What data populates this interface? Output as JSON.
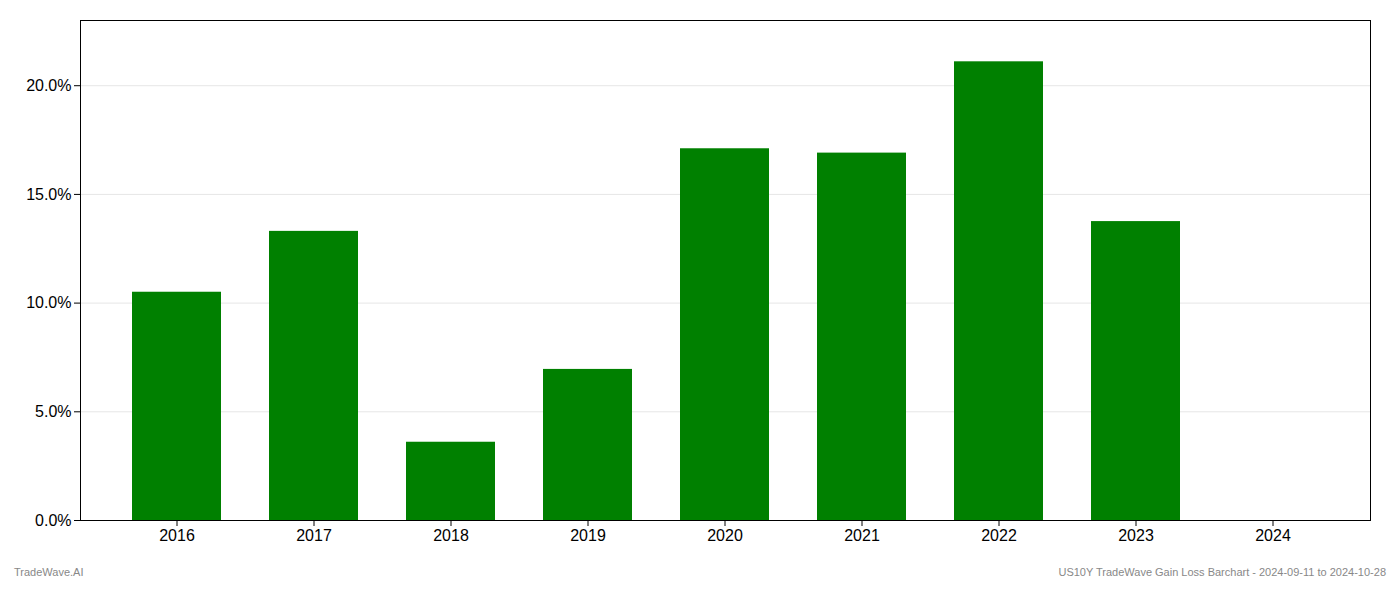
{
  "chart_data": {
    "type": "bar",
    "categories": [
      "2016",
      "2017",
      "2018",
      "2019",
      "2020",
      "2021",
      "2022",
      "2023",
      "2024"
    ],
    "values": [
      10.5,
      13.3,
      3.6,
      6.95,
      17.1,
      16.9,
      21.1,
      13.75,
      0.0
    ],
    "color": "#008000",
    "ylim": [
      0,
      23
    ],
    "yticks": [
      {
        "value": 0.0,
        "label": "0.0%"
      },
      {
        "value": 5.0,
        "label": "5.0%"
      },
      {
        "value": 10.0,
        "label": "10.0%"
      },
      {
        "value": 15.0,
        "label": "15.0%"
      },
      {
        "value": 20.0,
        "label": "20.0%"
      }
    ],
    "grid": true,
    "annotations": [
      "TradeWave.AI",
      "US10Y TradeWave Gain Loss Barchart - 2024-09-11 to 2024-10-28"
    ]
  }
}
